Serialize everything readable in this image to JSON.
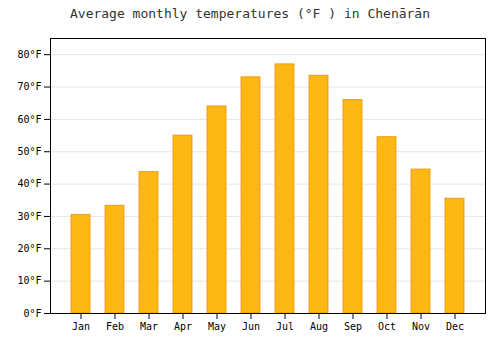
{
  "chart_data": {
    "type": "bar",
    "title": "Average monthly temperatures (°F ) in Chenārān",
    "categories": [
      "Jan",
      "Feb",
      "Mar",
      "Apr",
      "May",
      "Jun",
      "Jul",
      "Aug",
      "Sep",
      "Oct",
      "Nov",
      "Dec"
    ],
    "values": [
      30.5,
      33.3,
      43.7,
      55.0,
      64.0,
      73.0,
      77.0,
      73.5,
      66.0,
      54.5,
      44.5,
      35.5
    ],
    "color": "#FDB813",
    "ylim": [
      0,
      85
    ],
    "yticks": [
      {
        "value": 0,
        "label": "0°F"
      },
      {
        "value": 10,
        "label": "10°F"
      },
      {
        "value": 20,
        "label": "20°F"
      },
      {
        "value": 30,
        "label": "30°F"
      },
      {
        "value": 40,
        "label": "40°F"
      },
      {
        "value": 50,
        "label": "50°F"
      },
      {
        "value": 60,
        "label": "60°F"
      },
      {
        "value": 70,
        "label": "70°F"
      },
      {
        "value": 80,
        "label": "80°F"
      }
    ],
    "grid": true
  }
}
